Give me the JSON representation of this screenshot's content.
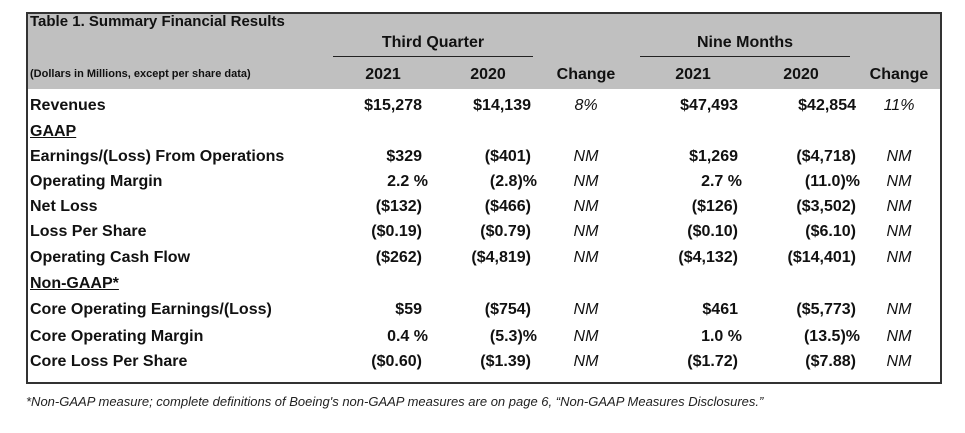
{
  "table": {
    "title": "Table 1.  Summary Financial Results",
    "subtitle": "(Dollars in Millions, except per share data)",
    "groups": {
      "third_quarter": "Third Quarter",
      "nine_months": "Nine Months"
    },
    "columns": [
      "2021",
      "2020",
      "Change",
      "2021",
      "2020",
      "Change"
    ],
    "revenues": {
      "label": "Revenues",
      "v": [
        "$15,278",
        "$14,139",
        "8%",
        "$47,493",
        "$42,854",
        "11%"
      ]
    },
    "gaap_header": "GAAP",
    "gaap_rows": [
      {
        "label": "Earnings/(Loss) From Operations",
        "v": [
          "$329",
          "($401)",
          "NM",
          "$1,269",
          "($4,718)",
          "NM"
        ]
      },
      {
        "label": "Operating Margin",
        "v": [
          "2.2 %",
          "(2.8)%",
          "NM",
          "2.7 %",
          "(11.0)%",
          "NM"
        ]
      },
      {
        "label": "Net Loss",
        "v": [
          "($132)",
          "($466)",
          "NM",
          "($126)",
          "($3,502)",
          "NM"
        ]
      },
      {
        "label": "Loss Per Share",
        "v": [
          "($0.19)",
          "($0.79)",
          "NM",
          "($0.10)",
          "($6.10)",
          "NM"
        ]
      },
      {
        "label": "Operating Cash Flow",
        "v": [
          "($262)",
          "($4,819)",
          "NM",
          "($4,132)",
          "($14,401)",
          "NM"
        ]
      }
    ],
    "nongaap_header": "Non-GAAP*",
    "nongaap_rows": [
      {
        "label": "Core Operating Earnings/(Loss)",
        "v": [
          "$59",
          "($754)",
          "NM",
          "$461",
          "($5,773)",
          "NM"
        ]
      },
      {
        "label": "Core Operating Margin",
        "v": [
          "0.4 %",
          "(5.3)%",
          "NM",
          "1.0 %",
          "(13.5)%",
          "NM"
        ]
      },
      {
        "label": "Core Loss Per Share",
        "v": [
          "($0.60)",
          "($1.39)",
          "NM",
          "($1.72)",
          "($7.88)",
          "NM"
        ]
      }
    ],
    "footnote": "*Non-GAAP measure; complete definitions of Boeing's non-GAAP measures are on page 6, “Non-GAAP Measures Disclosures.”"
  }
}
